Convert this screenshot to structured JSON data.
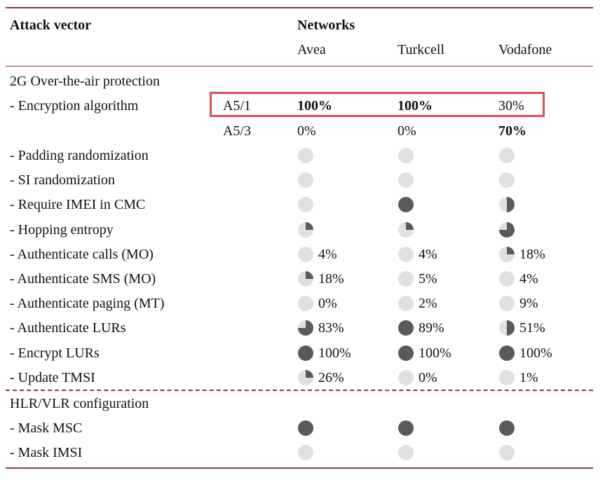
{
  "header": {
    "attack_vector": "Attack vector",
    "networks": "Networks",
    "operators": [
      "Avea",
      "Turkcell",
      "Vodafone"
    ]
  },
  "sections": {
    "ota": "2G Over-the-air protection",
    "hlr": "HLR/VLR configuration"
  },
  "encryption": {
    "label": "- Encryption algorithm",
    "rows": [
      {
        "algo": "A5/1",
        "values": [
          "100%",
          "100%",
          "30%"
        ],
        "bold": [
          true,
          true,
          false
        ]
      },
      {
        "algo": "A5/3",
        "values": [
          "0%",
          "0%",
          "70%"
        ],
        "bold": [
          false,
          false,
          true
        ]
      }
    ]
  },
  "rows": [
    {
      "label": "- Padding randomization",
      "cells": [
        {
          "fill": 0,
          "text": ""
        },
        {
          "fill": 0,
          "text": ""
        },
        {
          "fill": 0,
          "text": ""
        }
      ]
    },
    {
      "label": "- SI randomization",
      "cells": [
        {
          "fill": 0,
          "text": ""
        },
        {
          "fill": 0,
          "text": ""
        },
        {
          "fill": 0,
          "text": ""
        }
      ]
    },
    {
      "label": "- Require IMEI in CMC",
      "cells": [
        {
          "fill": 0,
          "text": ""
        },
        {
          "fill": 1,
          "text": ""
        },
        {
          "fill": 0.5,
          "text": ""
        }
      ]
    },
    {
      "label": "- Hopping entropy",
      "cells": [
        {
          "fill": 0.25,
          "text": ""
        },
        {
          "fill": 0.25,
          "text": ""
        },
        {
          "fill": 0.75,
          "text": ""
        }
      ]
    },
    {
      "label": "- Authenticate calls (MO)",
      "cells": [
        {
          "fill": 0,
          "text": "4%"
        },
        {
          "fill": 0,
          "text": "4%"
        },
        {
          "fill": 0.25,
          "text": "18%"
        }
      ]
    },
    {
      "label": "- Authenticate SMS (MO)",
      "cells": [
        {
          "fill": 0.25,
          "text": "18%"
        },
        {
          "fill": 0,
          "text": "5%"
        },
        {
          "fill": 0,
          "text": "4%"
        }
      ]
    },
    {
      "label": "- Authenticate paging (MT)",
      "cells": [
        {
          "fill": 0,
          "text": "0%"
        },
        {
          "fill": 0,
          "text": "2%"
        },
        {
          "fill": 0,
          "text": "9%"
        }
      ]
    },
    {
      "label": "- Authenticate LURs",
      "cells": [
        {
          "fill": 0.75,
          "text": "83%"
        },
        {
          "fill": 1,
          "text": "89%"
        },
        {
          "fill": 0.5,
          "text": "51%"
        }
      ]
    },
    {
      "label": "- Encrypt LURs",
      "cells": [
        {
          "fill": 1,
          "text": "100%"
        },
        {
          "fill": 1,
          "text": "100%"
        },
        {
          "fill": 1,
          "text": "100%"
        }
      ]
    },
    {
      "label": "- Update TMSI",
      "cells": [
        {
          "fill": 0.25,
          "text": "26%"
        },
        {
          "fill": 0,
          "text": "0%"
        },
        {
          "fill": 0,
          "text": "1%"
        }
      ]
    }
  ],
  "hlr_rows": [
    {
      "label": "- Mask MSC",
      "cells": [
        {
          "fill": 1,
          "text": ""
        },
        {
          "fill": 1,
          "text": ""
        },
        {
          "fill": 1,
          "text": ""
        }
      ]
    },
    {
      "label": "- Mask IMSI",
      "cells": [
        {
          "fill": 0,
          "text": ""
        },
        {
          "fill": 0,
          "text": ""
        },
        {
          "fill": 0,
          "text": ""
        }
      ]
    }
  ],
  "colors": {
    "empty": "#e0e0e0",
    "filled": "#5a5a5a",
    "rule": "#8b3a3a",
    "highlight": "#d9534f"
  }
}
